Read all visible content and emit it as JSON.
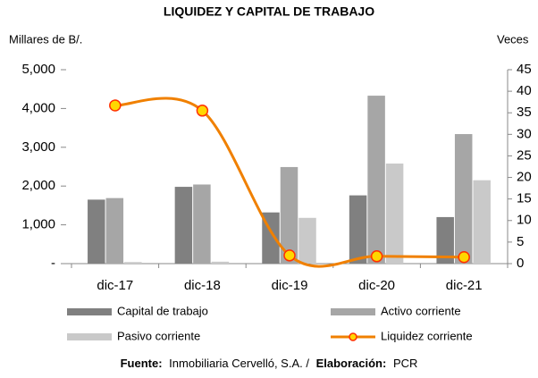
{
  "chart_data": {
    "type": "bar_line",
    "title": "LIQUIDEZ Y CAPITAL DE TRABAJO",
    "y_label": "Millares de B/.",
    "y2_label": "Veces",
    "categories": [
      "dic-17",
      "dic-18",
      "dic-19",
      "dic-20",
      "dic-21"
    ],
    "series": [
      {
        "name": "Capital de trabajo",
        "color": "#808080",
        "type": "bar",
        "values": [
          1650,
          1980,
          1320,
          1760,
          1200
        ]
      },
      {
        "name": "Activo corriente",
        "color": "#a6a6a6",
        "type": "bar",
        "values": [
          1690,
          2040,
          2490,
          4330,
          3340
        ]
      },
      {
        "name": "Pasivo corriente",
        "color": "#c9c9c9",
        "type": "bar",
        "values": [
          40,
          50,
          1180,
          2580,
          2150
        ]
      },
      {
        "name": "Liquidez corriente",
        "color": "#f08000",
        "type": "line",
        "axis": "y2",
        "marker_color": "#ffd700",
        "values": [
          36.7,
          35.5,
          1.9,
          1.7,
          1.5
        ]
      }
    ],
    "ylim": [
      0,
      5000
    ],
    "yticks": [
      {
        "value": 0,
        "label": "-"
      },
      {
        "value": 1000,
        "label": "1,000"
      },
      {
        "value": 2000,
        "label": "2,000"
      },
      {
        "value": 3000,
        "label": "3,000"
      },
      {
        "value": 4000,
        "label": "4,000"
      },
      {
        "value": 5000,
        "label": "5,000"
      }
    ],
    "y2lim": [
      0,
      45
    ],
    "y2ticks": [
      0,
      5,
      10,
      15,
      20,
      25,
      30,
      35,
      40,
      45
    ],
    "footer": [
      "Fuente:",
      "Inmobiliaria Cervelló, S.A. /",
      "Elaboración:",
      "PCR"
    ]
  }
}
